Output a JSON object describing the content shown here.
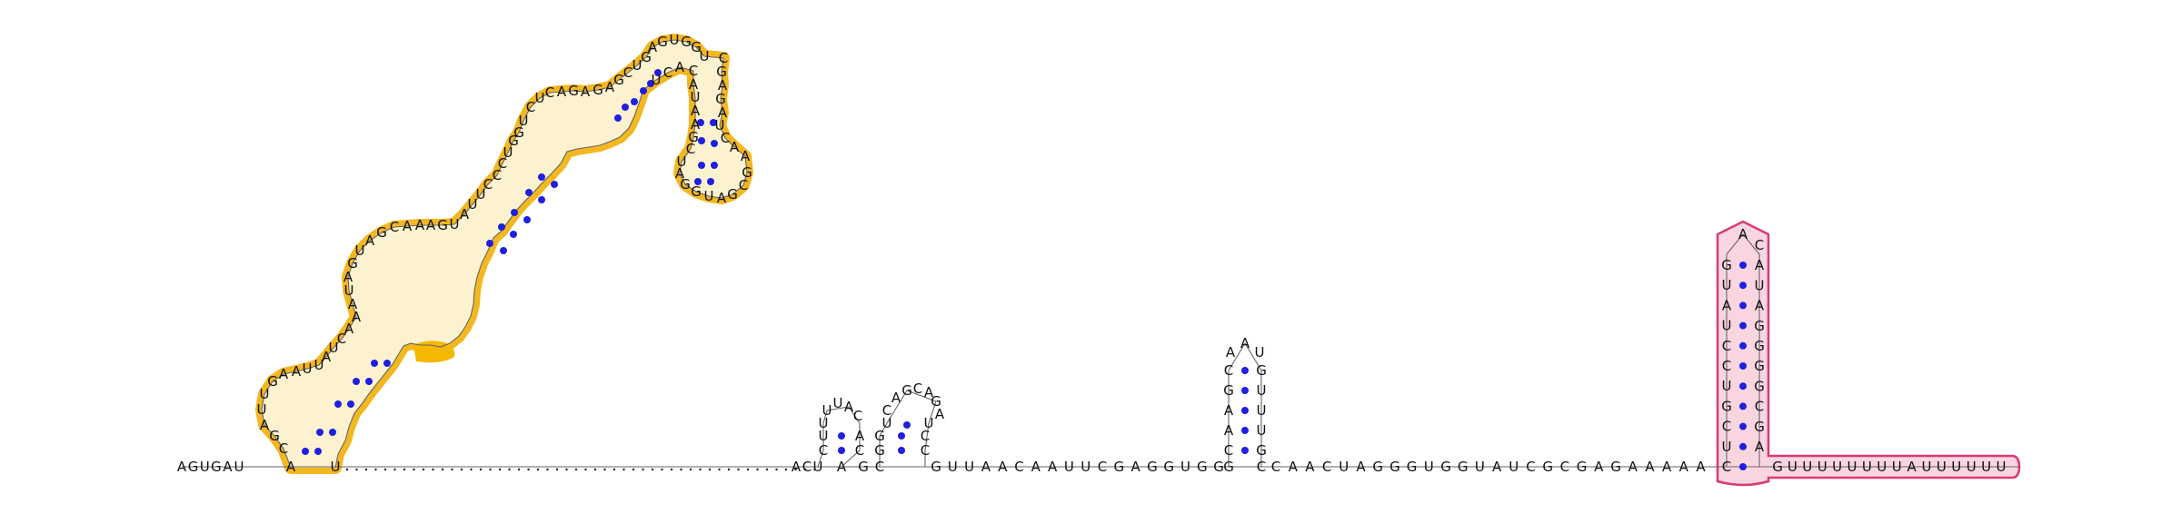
{
  "diagram": {
    "type": "rna-secondary-structure",
    "colors": {
      "outline_yellow": "#f2b007",
      "fill_yellow": "#fdf2d0",
      "highlight_yellow": "#f5b800",
      "outline_pink": "#d93a74",
      "fill_pink": "#f9d5e0",
      "base_pair_dot": "#1f1fe0",
      "text": "#111111"
    },
    "segments": {
      "lead_5prime": "AGUGAU",
      "domain1_left_strand": "A",
      "domain1_right_strand": "U",
      "domain1_text": "CGAUUGAAUUAUCAAAUAGUAGCAAAGUAUUCCCUGGUCUCAGAGAGCUGAGUGGUCGAGAUCAAGCGAUGGAUCGAAUACACU",
      "unpaired_linker": "..................................................",
      "hairpin2_5prime": "ACU",
      "hairpin2_stem": [
        "C",
        "U",
        "U"
      ],
      "hairpin2_loop": "UUAC",
      "hairpin2_close": "AG",
      "hairpin3_stem": [
        "C",
        "G",
        "U"
      ],
      "hairpin3_loop": "CAGCAGA",
      "hairpin3_close": "UCG",
      "spacer_1": "GUUAACAAUUCGAGGUGG",
      "hairpin4_left": [
        "C",
        "A",
        "A",
        "G",
        "C"
      ],
      "hairpin4_loop": "AAU",
      "hairpin4_right": [
        "G",
        "U",
        "U",
        "U",
        "G"
      ],
      "spacer_2": "CAACUAGGGUGGUAUCGCGAGAAAAA",
      "terminator_left": [
        "C",
        "U",
        "C",
        "G",
        "U",
        "C",
        "C",
        "U",
        "A",
        "U",
        "G"
      ],
      "terminator_loop": "A",
      "terminator_right": [
        "C",
        "A",
        "U",
        "A",
        "G",
        "G",
        "G",
        "G",
        "C",
        "G",
        "A"
      ],
      "poly_u_tail": "GUUUUUUUUAUUUUUU"
    }
  }
}
